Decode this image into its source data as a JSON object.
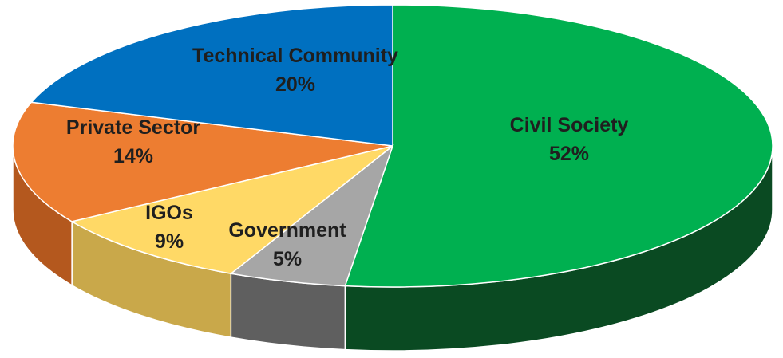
{
  "chart_data": {
    "type": "pie",
    "title": "",
    "start_at_top_clockwise": true,
    "slices": [
      {
        "label": "Civil Society",
        "value": 52,
        "value_label": "52%",
        "color": "#00b050",
        "side_color": "#0a4a22"
      },
      {
        "label": "Government",
        "value": 5,
        "value_label": "5%",
        "color": "#a6a6a6",
        "side_color": "#5f5f5f"
      },
      {
        "label": "IGOs",
        "value": 9,
        "value_label": "9%",
        "color": "#ffd966",
        "side_color": "#c9a84a"
      },
      {
        "label": "Private Sector",
        "value": 14,
        "value_label": "14%",
        "color": "#ed7d31",
        "side_color": "#b4581e"
      },
      {
        "label": "Technical Community",
        "value": 20,
        "value_label": "20%",
        "color": "#0070c0",
        "side_color": "#004f86"
      }
    ]
  }
}
